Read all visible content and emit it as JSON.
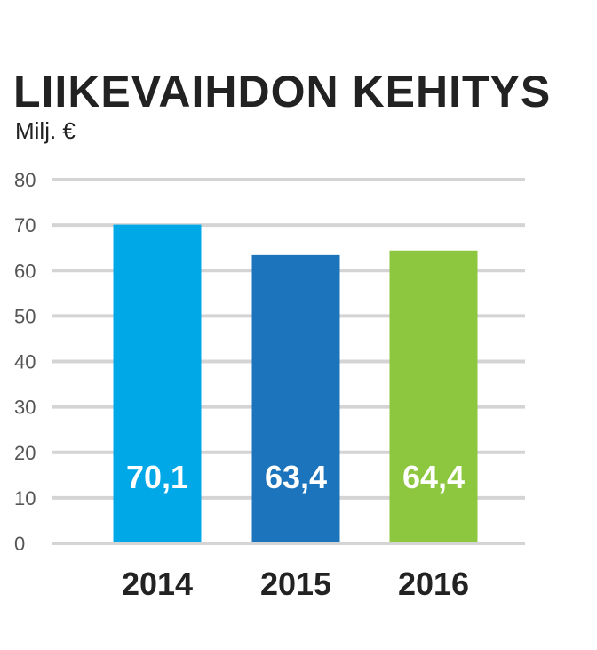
{
  "chart_data": {
    "type": "bar",
    "title": "LIIKEVAIHDON KEHITYS",
    "subtitle": "Milj. €",
    "xlabel": "",
    "ylabel": "",
    "categories": [
      "2014",
      "2015",
      "2016"
    ],
    "values": [
      70.1,
      63.4,
      64.4
    ],
    "value_labels": [
      "70,1",
      "63,4",
      "64,4"
    ],
    "bar_colors": [
      "#00a8e8",
      "#1c75bc",
      "#8dc63f"
    ],
    "ylim": [
      0,
      80
    ],
    "yticks": [
      0,
      10,
      20,
      30,
      40,
      50,
      60,
      70,
      80
    ],
    "grid": true,
    "grid_color": "#d4d4d4",
    "legend": "none"
  }
}
